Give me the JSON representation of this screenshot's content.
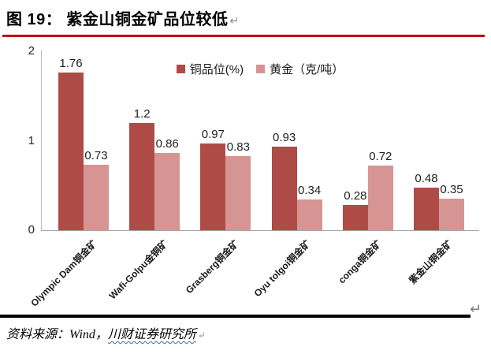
{
  "header": {
    "title": "图 19： 紫金山铜金矿品位较低",
    "paragraph_mark": "↵"
  },
  "chart": {
    "corner_paragraph_mark": "↵"
  },
  "chart_data": {
    "type": "bar",
    "title": "",
    "xlabel": "",
    "ylabel": "",
    "categories": [
      "Olympic Dam铜金矿",
      "Wafi-Golpu金铜矿",
      "Grasberg铜金矿",
      "Oyu tolgoi铜金矿",
      "conga铜金矿",
      "紫金山铜金矿"
    ],
    "series": [
      {
        "name": "铜品位(%)",
        "color": "#AF4B46",
        "values": [
          1.76,
          1.2,
          0.97,
          0.93,
          0.28,
          0.48
        ]
      },
      {
        "name": "黄金（克/吨）",
        "color": "#D69493",
        "values": [
          0.73,
          0.86,
          0.83,
          0.34,
          0.72,
          0.35
        ]
      }
    ],
    "ylim": [
      0,
      2
    ],
    "yticks": [
      0,
      1,
      2
    ],
    "legend_position": "top-center",
    "grid": false,
    "bar_value_labels": true
  },
  "source": {
    "label": "资料来源：",
    "vendor": "Wind，",
    "institute": "川财证券研究所",
    "paragraph_mark": "↵"
  },
  "colors": {
    "title_rule": "#C00000",
    "bottom_rule": "#000000",
    "axis": "#BFBFBF",
    "series_copper": "#AF4B46",
    "series_gold": "#D69493"
  }
}
